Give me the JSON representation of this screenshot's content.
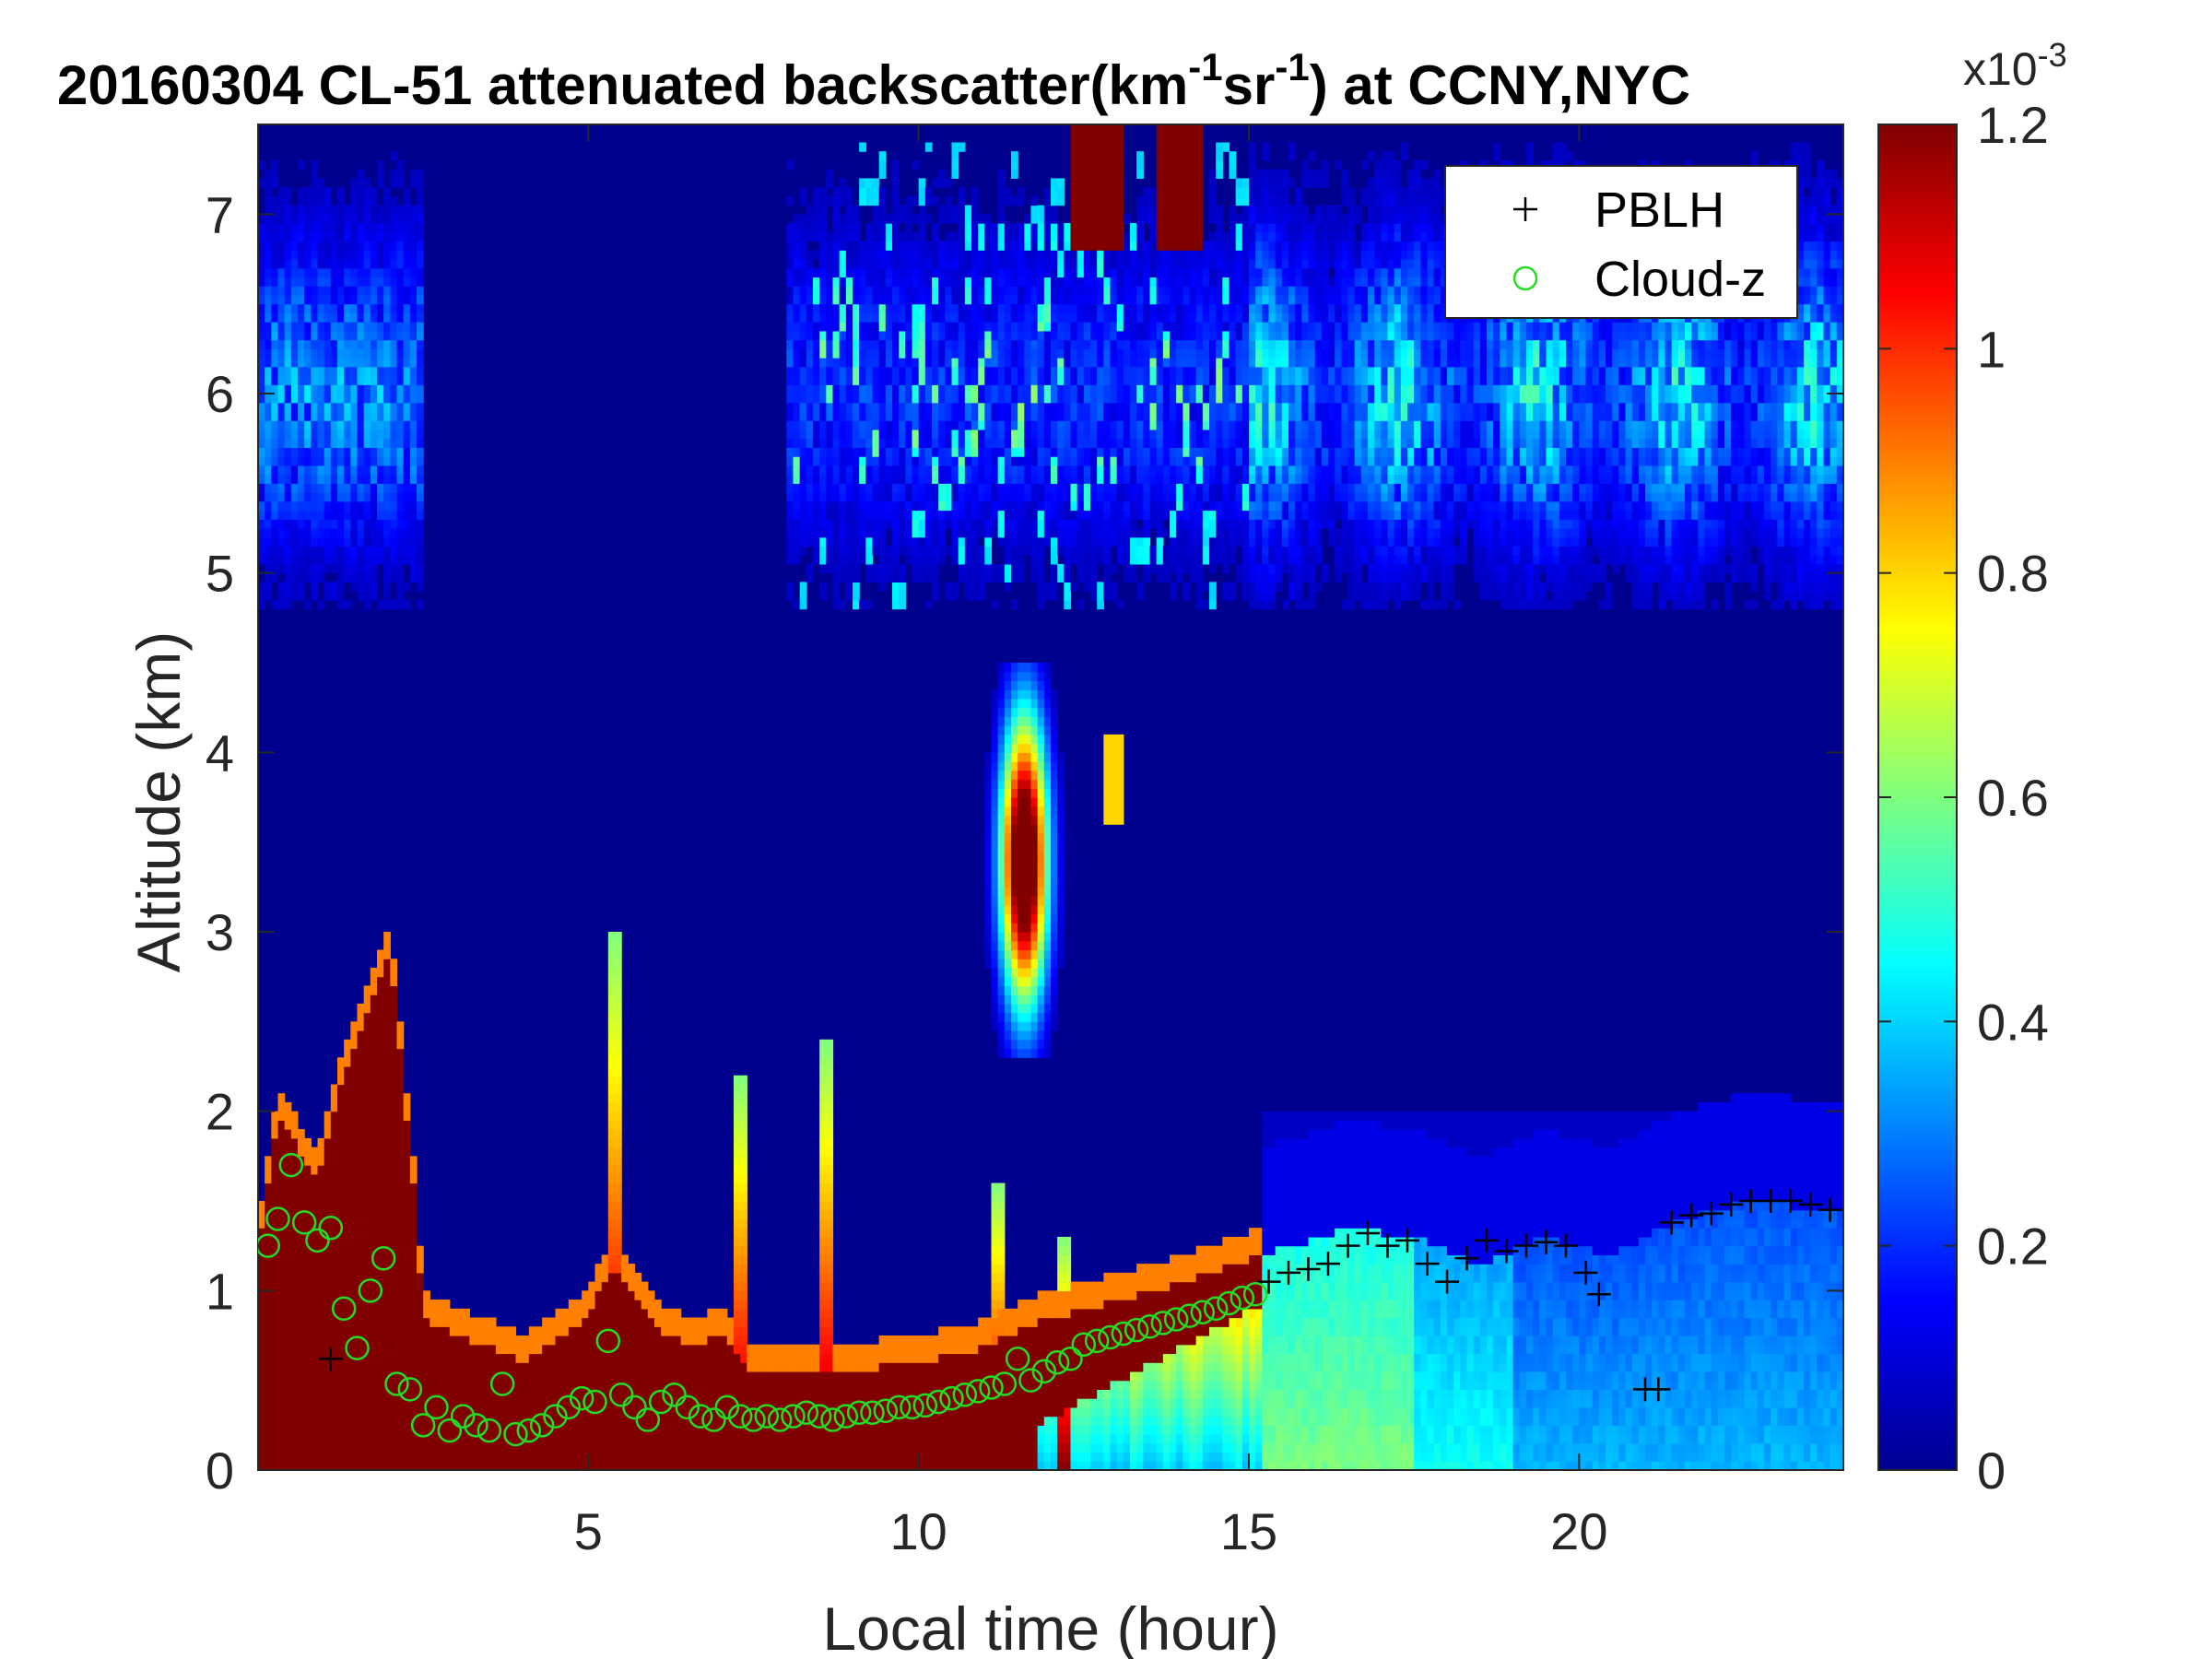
{
  "figure": {
    "title_main": "20160304  CL-51 attenuated backscatter(km",
    "title_sup1": "-1",
    "title_mid": "sr",
    "title_sup2": "-1",
    "title_end": ") at CCNY,NYC",
    "colorbar_exponent_label": "x10",
    "colorbar_exponent_sup": "-3"
  },
  "chart_data": {
    "type": "heatmap",
    "title": "20160304  CL-51 attenuated backscatter(km^-1 sr^-1) at CCNY,NYC",
    "xlabel": "Local time (hour)",
    "ylabel": "Altitude (km)",
    "xlim": [
      0,
      24
    ],
    "ylim": [
      0,
      7.5
    ],
    "x_ticks": [
      5,
      10,
      15,
      20
    ],
    "x_tick_labels": [
      "5",
      "10",
      "15",
      "20"
    ],
    "y_ticks": [
      0,
      1,
      2,
      3,
      4,
      5,
      6,
      7
    ],
    "y_tick_labels": [
      "0",
      "1",
      "2",
      "3",
      "4",
      "5",
      "6",
      "7"
    ],
    "grid": false,
    "colormap": "jet",
    "colorbar": {
      "clim": [
        0,
        0.0012
      ],
      "ticks": [
        0,
        0.2,
        0.4,
        0.6,
        0.8,
        1,
        1.2
      ],
      "tick_labels": [
        "0",
        "0.2",
        "0.4",
        "0.6",
        "0.8",
        "1",
        "1.2"
      ],
      "scale_label": "x10^-3"
    },
    "legend": {
      "location": "top-right",
      "entries": [
        {
          "label": "PBLH",
          "marker": "+",
          "color": "#000000"
        },
        {
          "label": "Cloud-z",
          "marker": "o",
          "color": "#22dd22"
        }
      ]
    },
    "series": [
      {
        "name": "PBLH",
        "marker": "+",
        "color": "#000000",
        "x": [
          1.1,
          15.3,
          15.6,
          15.9,
          16.2,
          16.5,
          16.8,
          17.1,
          17.4,
          17.7,
          18.0,
          18.3,
          18.6,
          18.9,
          19.2,
          19.5,
          19.8,
          20.1,
          20.3,
          21.0,
          21.2,
          21.4,
          21.7,
          22.0,
          22.3,
          22.6,
          22.9,
          23.2,
          23.5,
          23.8
        ],
        "y": [
          0.62,
          1.05,
          1.1,
          1.12,
          1.15,
          1.25,
          1.32,
          1.25,
          1.28,
          1.15,
          1.05,
          1.18,
          1.28,
          1.22,
          1.25,
          1.27,
          1.25,
          1.1,
          0.98,
          0.45,
          0.45,
          1.38,
          1.42,
          1.43,
          1.48,
          1.5,
          1.5,
          1.5,
          1.48,
          1.45
        ]
      },
      {
        "name": "Cloud-z",
        "marker": "o",
        "color": "#22dd22",
        "x": [
          0.15,
          0.3,
          0.5,
          0.7,
          0.9,
          1.1,
          1.3,
          1.5,
          1.7,
          1.9,
          2.1,
          2.3,
          2.5,
          2.7,
          2.9,
          3.1,
          3.3,
          3.5,
          3.7,
          3.9,
          4.1,
          4.3,
          4.5,
          4.7,
          4.9,
          5.1,
          5.3,
          5.5,
          5.7,
          5.9,
          6.1,
          6.3,
          6.5,
          6.7,
          6.9,
          7.1,
          7.3,
          7.5,
          7.7,
          7.9,
          8.1,
          8.3,
          8.5,
          8.7,
          8.9,
          9.1,
          9.3,
          9.5,
          9.7,
          9.9,
          10.1,
          10.3,
          10.5,
          10.7,
          10.9,
          11.1,
          11.3,
          11.5,
          11.7,
          11.9,
          12.1,
          12.3,
          12.5,
          12.7,
          12.9,
          13.1,
          13.3,
          13.5,
          13.7,
          13.9,
          14.1,
          14.3,
          14.5,
          14.7,
          14.9,
          15.1
        ],
        "y": [
          1.25,
          1.4,
          1.7,
          1.38,
          1.28,
          1.35,
          0.9,
          0.68,
          1.0,
          1.18,
          0.48,
          0.45,
          0.25,
          0.35,
          0.22,
          0.3,
          0.25,
          0.22,
          0.48,
          0.2,
          0.22,
          0.25,
          0.3,
          0.35,
          0.4,
          0.38,
          0.72,
          0.42,
          0.35,
          0.28,
          0.38,
          0.42,
          0.35,
          0.3,
          0.28,
          0.35,
          0.3,
          0.28,
          0.3,
          0.28,
          0.3,
          0.32,
          0.3,
          0.28,
          0.3,
          0.32,
          0.32,
          0.33,
          0.35,
          0.35,
          0.36,
          0.38,
          0.4,
          0.42,
          0.44,
          0.46,
          0.48,
          0.62,
          0.5,
          0.55,
          0.6,
          0.62,
          0.7,
          0.72,
          0.74,
          0.76,
          0.78,
          0.8,
          0.82,
          0.84,
          0.86,
          0.88,
          0.9,
          0.93,
          0.96,
          0.98
        ]
      }
    ]
  }
}
